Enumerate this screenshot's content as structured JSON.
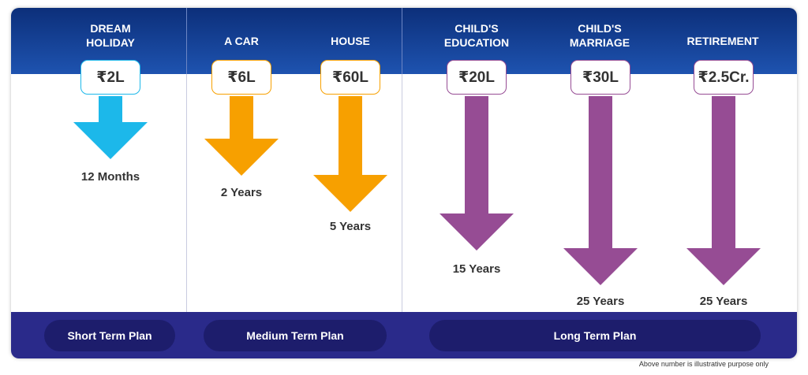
{
  "colors": {
    "short": "#1cb8ea",
    "medium": "#f7a000",
    "long": "#964c94"
  },
  "goals": [
    {
      "title": "DREAM\nHOLIDAY",
      "amount": "₹2L",
      "duration": "12 Months",
      "plan": "short"
    },
    {
      "title": "A CAR",
      "amount": "₹6L",
      "duration": "2 Years",
      "plan": "medium"
    },
    {
      "title": "HOUSE",
      "amount": "₹60L",
      "duration": "5 Years",
      "plan": "medium"
    },
    {
      "title": "CHILD'S\nEDUCATION",
      "amount": "₹20L",
      "duration": "15 Years",
      "plan": "long"
    },
    {
      "title": "CHILD'S\nMARRIAGE",
      "amount": "₹30L",
      "duration": "25 Years",
      "plan": "long"
    },
    {
      "title": "RETIREMENT",
      "amount": "₹2.5Cr.",
      "duration": "25 Years",
      "plan": "long"
    }
  ],
  "plans": {
    "short": "Short Term Plan",
    "medium": "Medium Term Plan",
    "long": "Long Term Plan"
  },
  "note": "Above number is illustrative purpose only"
}
